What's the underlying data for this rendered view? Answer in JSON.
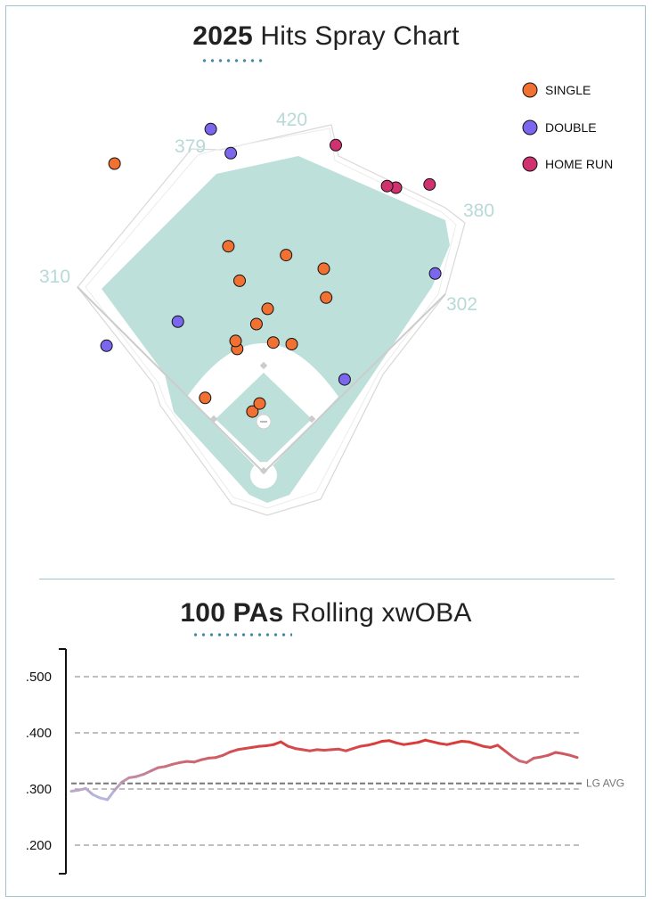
{
  "colors": {
    "single": "#f07132",
    "double": "#7b67ee",
    "home_run": "#d0326f",
    "field_grass": "#bde0da",
    "accent": "#4a8ca4",
    "line_low": "#b5b8e0",
    "line_high": "#d93a36"
  },
  "spray": {
    "title_bold": "2025",
    "title_rest": " Hits Spray Chart",
    "distances": [
      "310",
      "379",
      "420",
      "380",
      "302"
    ],
    "legend": [
      {
        "key": "single",
        "label": "SINGLE"
      },
      {
        "key": "double",
        "label": "DOUBLE"
      },
      {
        "key": "home_run",
        "label": "HOME RUN"
      }
    ]
  },
  "rolling": {
    "title_bold": "100 PAs",
    "title_rest": " Rolling xwOBA",
    "y_ticks": [
      ".500",
      ".400",
      ".300",
      ".200"
    ],
    "lg_avg_label": "LG AVG"
  },
  "chart_data": [
    {
      "type": "scatter",
      "title": "2025 Hits Spray Chart",
      "description_units": "field coordinates in feet (x = toward 1B side, y = toward CF, home plate at origin)",
      "categories": [
        "SINGLE",
        "DOUBLE",
        "HOME RUN"
      ],
      "series": [
        {
          "name": "SINGLE",
          "points": [
            [
              -186,
              385
            ],
            [
              -30,
              239
            ],
            [
              -44,
              282
            ],
            [
              28,
              271
            ],
            [
              -73,
              93
            ],
            [
              -9,
              185
            ],
            [
              5,
              204
            ],
            [
              12,
              162
            ],
            [
              35,
              160
            ],
            [
              -14,
              76
            ],
            [
              -5,
              86
            ],
            [
              -33,
              154
            ],
            [
              -35,
              164
            ],
            [
              78,
              218
            ],
            [
              75,
              254
            ]
          ]
        },
        {
          "name": "DOUBLE",
          "points": [
            [
              -196,
              158
            ],
            [
              -66,
              428
            ],
            [
              -41,
              398
            ],
            [
              -107,
              188
            ],
            [
              101,
              116
            ],
            [
              214,
              248
            ]
          ]
        },
        {
          "name": "HOME RUN",
          "points": [
            [
              90,
              408
            ],
            [
              165,
              355
            ],
            [
              154,
              357
            ],
            [
              207,
              359
            ]
          ]
        }
      ],
      "fence_distances_ft": {
        "LF": 310,
        "LCF": 379,
        "CF": 420,
        "RCF": 380,
        "RF": 302
      }
    },
    {
      "type": "line",
      "title": "100 PAs Rolling xwOBA",
      "xlabel": "",
      "ylabel": "",
      "ylim": [
        0.16,
        0.54
      ],
      "y_ticks": [
        0.2,
        0.3,
        0.4,
        0.5
      ],
      "league_average": 0.31,
      "series": [
        {
          "name": "Rolling xwOBA",
          "values": [
            0.296,
            0.298,
            0.301,
            0.29,
            0.284,
            0.281,
            0.298,
            0.312,
            0.32,
            0.322,
            0.326,
            0.332,
            0.338,
            0.34,
            0.344,
            0.347,
            0.349,
            0.348,
            0.352,
            0.355,
            0.356,
            0.36,
            0.366,
            0.37,
            0.372,
            0.374,
            0.376,
            0.377,
            0.379,
            0.384,
            0.376,
            0.372,
            0.37,
            0.368,
            0.37,
            0.369,
            0.37,
            0.371,
            0.368,
            0.372,
            0.376,
            0.378,
            0.381,
            0.385,
            0.386,
            0.382,
            0.379,
            0.381,
            0.383,
            0.387,
            0.384,
            0.381,
            0.379,
            0.382,
            0.385,
            0.384,
            0.38,
            0.376,
            0.374,
            0.378,
            0.368,
            0.358,
            0.35,
            0.347,
            0.355,
            0.357,
            0.36,
            0.365,
            0.363,
            0.36,
            0.356
          ]
        }
      ]
    }
  ]
}
